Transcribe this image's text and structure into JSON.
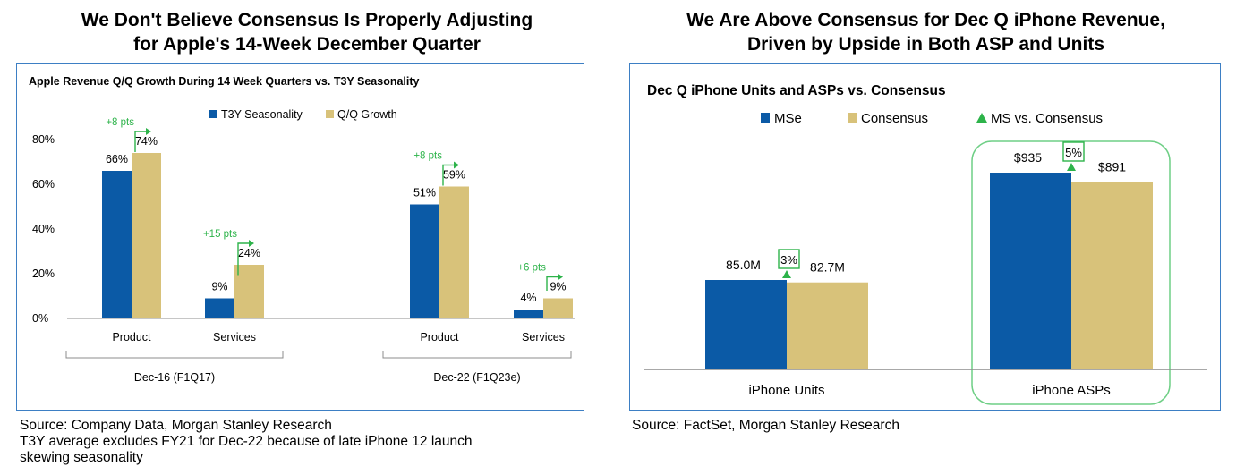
{
  "left": {
    "heading": [
      "We Don't Believe Consensus Is Properly Adjusting",
      "for Apple's 14-Week December Quarter"
    ],
    "source_lines": [
      "Source: Company Data, Morgan Stanley Research",
      "T3Y average excludes FY21 for Dec-22 because of late iPhone 12 launch",
      "skewing seasonality"
    ]
  },
  "right": {
    "heading": [
      "We Are Above Consensus for Dec Q iPhone Revenue,",
      "Driven by Upside in Both ASP and Units"
    ],
    "source_lines": [
      "Source: FactSet, Morgan Stanley Research"
    ]
  },
  "colors": {
    "blue": "#0b5aa6",
    "gold": "#d8c27a",
    "green": "#2db34a",
    "axis": "#8c8c8c",
    "frame": "#3d7fc4"
  },
  "chart_data": [
    {
      "type": "bar",
      "title": "Apple Revenue Q/Q Growth During 14 Week Quarters vs. T3Y Seasonality",
      "categories": [
        "Product",
        "Services",
        "Product",
        "Services"
      ],
      "groups": [
        {
          "label": "Dec-16 (F1Q17)",
          "categories": [
            "Product",
            "Services"
          ]
        },
        {
          "label": "Dec-22 (F1Q23e)",
          "categories": [
            "Product",
            "Services"
          ]
        }
      ],
      "series": [
        {
          "name": "T3Y Seasonality",
          "values": [
            66,
            9,
            51,
            4
          ]
        },
        {
          "name": "Q/Q Growth",
          "values": [
            74,
            24,
            59,
            9
          ]
        }
      ],
      "value_labels": {
        "T3Y Seasonality": [
          "66%",
          "9%",
          "51%",
          "4%"
        ],
        "Q/Q Growth": [
          "74%",
          "24%",
          "59%",
          "9%"
        ]
      },
      "annotations": [
        "+8 pts",
        "+15 pts",
        "+8 pts",
        "+6 pts"
      ],
      "yticks": [
        "0%",
        "20%",
        "40%",
        "60%",
        "80%"
      ],
      "ylim": [
        0,
        80
      ],
      "legend_position": "top"
    },
    {
      "type": "bar",
      "title": "Dec Q iPhone Units and ASPs vs. Consensus",
      "categories": [
        "iPhone Units",
        "iPhone ASPs"
      ],
      "series": [
        {
          "name": "MSe",
          "values": [
            85.0,
            935
          ]
        },
        {
          "name": "Consensus",
          "values": [
            82.7,
            891
          ]
        }
      ],
      "value_labels": {
        "MSe": [
          "85.0M",
          "$935"
        ],
        "Consensus": [
          "82.7M",
          "$891"
        ]
      },
      "marker_series": {
        "name": "MS vs. Consensus",
        "values": [
          3,
          5
        ],
        "labels": [
          "3%",
          "5%"
        ]
      },
      "scale_note": "each category is scaled independently (units in millions, ASP in dollars)",
      "highlighted_category": "iPhone ASPs",
      "legend_position": "top"
    }
  ]
}
